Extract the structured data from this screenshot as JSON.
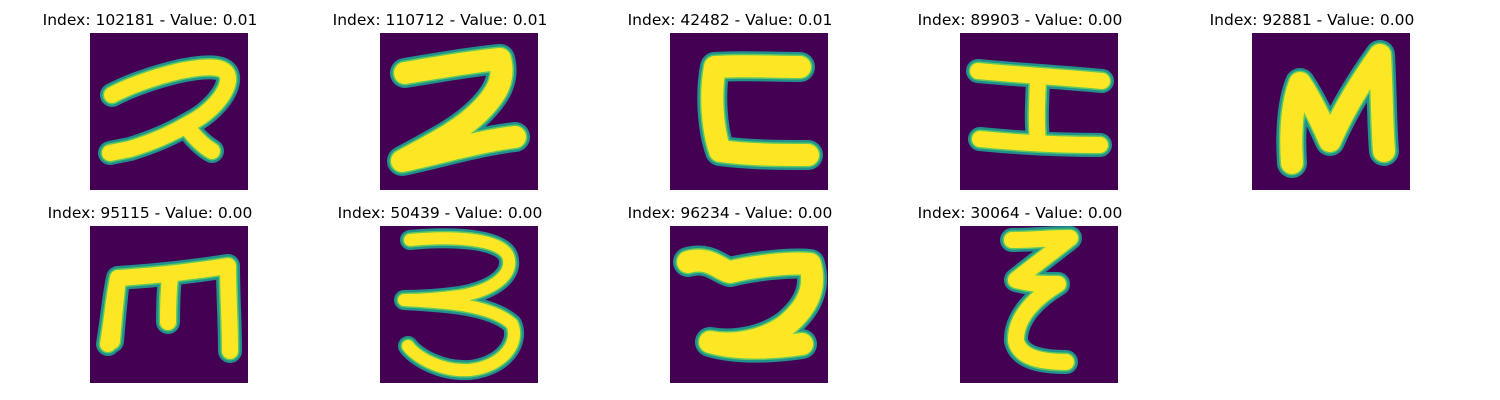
{
  "colors": {
    "background": "#440154",
    "stroke_core": "#fde725",
    "stroke_edge": "#21918c",
    "stroke_mid": "#5ec962"
  },
  "panels": [
    {
      "index": "102181",
      "value": "0.01",
      "title": "Index: 102181 - Value: 0.01",
      "glyph": "digit-2-icon"
    },
    {
      "index": "110712",
      "value": "0.01",
      "title": "Index: 110712 - Value: 0.01",
      "glyph": "digit-2-bold-icon"
    },
    {
      "index": "42482",
      "value": "0.01",
      "title": "Index: 42482 - Value: 0.01",
      "glyph": "letter-c-icon"
    },
    {
      "index": "89903",
      "value": "0.00",
      "title": "Index: 89903 - Value: 0.00",
      "glyph": "letter-h-rotated-icon"
    },
    {
      "index": "92881",
      "value": "0.00",
      "title": "Index: 92881 - Value: 0.00",
      "glyph": "letter-n-icon"
    },
    {
      "index": "95115",
      "value": "0.00",
      "title": "Index: 95115 - Value: 0.00",
      "glyph": "letter-m-icon"
    },
    {
      "index": "50439",
      "value": "0.00",
      "title": "Index: 50439 - Value: 0.00",
      "glyph": "digit-3-icon"
    },
    {
      "index": "96234",
      "value": "0.00",
      "title": "Index: 96234 - Value: 0.00",
      "glyph": "digit-2-cursive-icon"
    },
    {
      "index": "30064",
      "value": "0.00",
      "title": "Index: 30064 - Value: 0.00",
      "glyph": "letter-epsilon-icon"
    }
  ]
}
